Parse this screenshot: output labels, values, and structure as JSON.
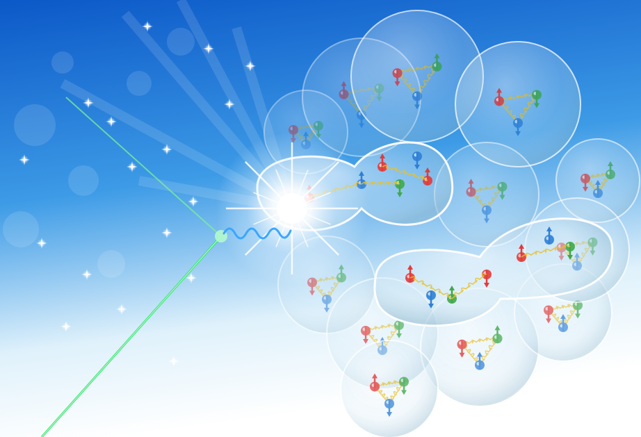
{
  "palette": {
    "sky_top": "#0b58c8",
    "sky_mid": "#3d9be6",
    "sky_bottom": "#ffffff",
    "laser": "#2fe36a",
    "photon_wave": "#3aa7ff",
    "gluon": "#e8c12a",
    "quark_red": "#e23a3a",
    "quark_green": "#3fa84a",
    "quark_blue": "#2f7fd6",
    "bubble": "#dfe8ef"
  },
  "elements": {
    "laser_beams": "two-green-laser-lines",
    "photon": "wavy-photon",
    "flash": "bright-collision-flash",
    "nucleons": "translucent-bubbles-with-quarks-and-gluon-springs"
  }
}
